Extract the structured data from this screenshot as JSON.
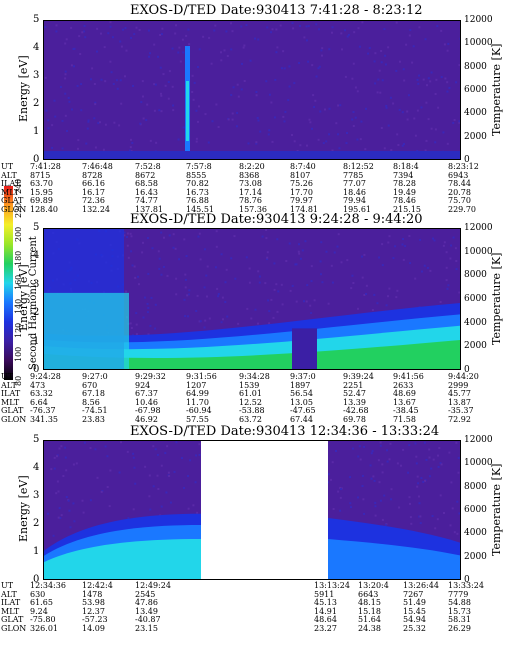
{
  "colors": {
    "background": "#4b1f9c",
    "scale": [
      "#000000",
      "#3a0a5a",
      "#3b1fa5",
      "#1d32e0",
      "#1a78ff",
      "#22d6ea",
      "#22d060",
      "#9ae628",
      "#f4ef2a",
      "#ff9b20",
      "#e81a1a"
    ]
  },
  "colorbar": {
    "label": "Second Harmonic Current",
    "ticks": [
      "240",
      "220",
      "200",
      "180",
      "160",
      "140",
      "120",
      "100",
      "80"
    ]
  },
  "chart_data": [
    {
      "type": "heatmap",
      "title": "EXOS-D/TED   Date:930413   7:41:28 - 8:23:12",
      "ylabel": "Energy [eV]",
      "y2label": "Temperature [K]",
      "ylim": [
        0,
        5
      ],
      "y2lim": [
        0,
        12000
      ],
      "yticks": [
        "0",
        "1",
        "2",
        "3",
        "4",
        "5"
      ],
      "y2ticks": [
        "0",
        "2000",
        "4000",
        "6000",
        "8000",
        "10000",
        "12000"
      ],
      "ephemeris_labels": [
        "UT",
        "ALT",
        "ILAT",
        "MLT",
        "GLAT",
        "GLON"
      ],
      "ephemeris": [
        [
          "7:41:28",
          "8715",
          "63.70",
          "15.95",
          "69.89",
          "128.40"
        ],
        [
          "7:46:48",
          "8728",
          "66.16",
          "16.17",
          "72.36",
          "132.24"
        ],
        [
          "7:52:8",
          "8672",
          "68.58",
          "16.43",
          "74.77",
          "137.81"
        ],
        [
          "7:57:8",
          "8555",
          "70.82",
          "16.73",
          "76.88",
          "145.51"
        ],
        [
          "8:2:20",
          "8368",
          "73.08",
          "17.14",
          "78.76",
          "157.36"
        ],
        [
          "8:7:40",
          "8107",
          "75.26",
          "17.70",
          "79.97",
          "174.81"
        ],
        [
          "8:12:52",
          "7785",
          "77.07",
          "18.46",
          "79.94",
          "195.61"
        ],
        [
          "8:18:4",
          "7394",
          "78.28",
          "19.49",
          "78.46",
          "215.15"
        ],
        [
          "8:23:12",
          "6943",
          "78.44",
          "20.78",
          "75.70",
          "229.70"
        ]
      ]
    },
    {
      "type": "heatmap",
      "title": "EXOS-D/TED   Date:930413   9:24:28 - 9:44:20",
      "ylabel": "Energy [eV]",
      "y2label": "Temperature [K]",
      "ylim": [
        0,
        5
      ],
      "y2lim": [
        0,
        12000
      ],
      "yticks": [
        "0",
        "1",
        "2",
        "3",
        "4",
        "5"
      ],
      "y2ticks": [
        "0",
        "2000",
        "4000",
        "6000",
        "8000",
        "10000",
        "12000"
      ],
      "ephemeris_labels": [
        "UT",
        "ALT",
        "ILAT",
        "MLT",
        "GLAT",
        "GLON"
      ],
      "ephemeris": [
        [
          "9:24:28",
          "473",
          "63.32",
          "6.64",
          "-76.37",
          "341.35"
        ],
        [
          "9:27:0",
          "670",
          "67.18",
          "8.56",
          "-74.51",
          "23.83"
        ],
        [
          "9:29:32",
          "924",
          "67.37",
          "10.46",
          "-67.98",
          "46.92"
        ],
        [
          "9:31:56",
          "1207",
          "64.99",
          "11.70",
          "-60.94",
          "57.55"
        ],
        [
          "9:34:28",
          "1539",
          "61.01",
          "12.52",
          "-53.88",
          "63.72"
        ],
        [
          "9:37:0",
          "1897",
          "56.54",
          "13.05",
          "-47.65",
          "67.44"
        ],
        [
          "9:39:24",
          "2251",
          "52.47",
          "13.39",
          "-42.68",
          "69.78"
        ],
        [
          "9:41:56",
          "2633",
          "48.69",
          "13.67",
          "-38.45",
          "71.58"
        ],
        [
          "9:44:20",
          "2999",
          "45.77",
          "13.87",
          "-35.37",
          "72.92"
        ]
      ]
    },
    {
      "type": "heatmap",
      "title": "EXOS-D/TED   Date:930413   12:34:36 - 13:33:24",
      "ylabel": "Energy [eV]",
      "y2label": "Temperature [K]",
      "ylim": [
        0,
        5
      ],
      "y2lim": [
        0,
        12000
      ],
      "yticks": [
        "0",
        "1",
        "2",
        "3",
        "4",
        "5"
      ],
      "y2ticks": [
        "0",
        "2000",
        "4000",
        "6000",
        "8000",
        "10000",
        "12000"
      ],
      "ephemeris_labels": [
        "UT",
        "ALT",
        "ILAT",
        "MLT",
        "GLAT",
        "GLON"
      ],
      "ephemeris": [
        [
          "12:34:36",
          "630",
          "61.65",
          "9.24",
          "-75.80",
          "326.01"
        ],
        [
          "12:42:4",
          "1478",
          "53.98",
          "12.37",
          "-57.23",
          "14.09"
        ],
        [
          "12:49:24",
          "2545",
          "47.86",
          "13.49",
          "-40.87",
          "23.15"
        ],
        [
          "13:13:24",
          "5911",
          "45.13",
          "14.91",
          "48.64",
          "23.27"
        ],
        [
          "13:20:4",
          "6643",
          "48.15",
          "15.18",
          "51.64",
          "24.38"
        ],
        [
          "13:26:44",
          "7267",
          "51.49",
          "15.45",
          "54.94",
          "25.32"
        ],
        [
          "13:33:24",
          "7779",
          "54.88",
          "15.73",
          "58.31",
          "26.29"
        ]
      ]
    }
  ]
}
